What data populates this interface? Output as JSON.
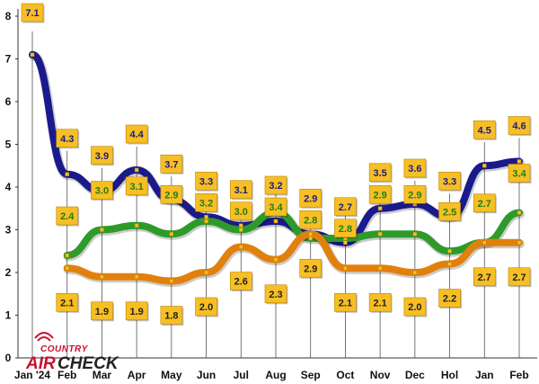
{
  "logo": {
    "top": "COUNTRY",
    "air": "AIR",
    "check": "CHECK"
  },
  "colors": {
    "blue": "#1a1a8c",
    "green": "#2e9a2a",
    "orange": "#e2800e",
    "label_fill": "#f7bf24",
    "label_stroke": "#b8860b",
    "axis": "#333333",
    "grid": "#dddddd"
  },
  "chart_data": {
    "type": "line",
    "title": "",
    "xlabel": "",
    "ylabel": "",
    "ylim": [
      0,
      8
    ],
    "yticks": [
      0,
      1,
      2,
      3,
      4,
      5,
      6,
      7,
      8
    ],
    "categories": [
      "Jan '24",
      "Feb",
      "Mar",
      "Apr",
      "May",
      "Jun",
      "Jul",
      "Aug",
      "Sep",
      "Oct",
      "Nov",
      "Dec",
      "Hol",
      "Jan",
      "Feb"
    ],
    "series": [
      {
        "name": "blue",
        "color": "#1a1a8c",
        "label_color": "#1a1a8c",
        "values": [
          7.1,
          4.3,
          3.9,
          4.4,
          3.7,
          3.3,
          3.1,
          3.2,
          2.9,
          2.7,
          3.5,
          3.6,
          3.3,
          4.5,
          4.6
        ],
        "label_text": [
          "7.1",
          "4.3",
          "3.9",
          "4.4",
          "3.7",
          "3.3",
          "3.1",
          "3.2",
          "2.9",
          "2.7",
          "3.5",
          "3.6",
          "3.3",
          "4.5",
          "4.6"
        ]
      },
      {
        "name": "green",
        "color": "#2e9a2a",
        "label_color": "#1e7d1a",
        "values": [
          null,
          2.4,
          3.0,
          3.1,
          2.9,
          3.2,
          3.0,
          3.4,
          2.8,
          2.8,
          2.9,
          2.9,
          2.5,
          2.7,
          3.4
        ],
        "label_text": [
          null,
          "2.4",
          "3.0",
          "3.1",
          "2.9",
          "3.2",
          "3.0",
          "3.4",
          "2.8",
          "2.8",
          "2.9",
          "2.9",
          "2.5",
          "2.7",
          "3.4"
        ]
      },
      {
        "name": "orange",
        "color": "#e2800e",
        "label_color": "#222222",
        "values": [
          null,
          2.1,
          1.9,
          1.9,
          1.8,
          2.0,
          2.6,
          2.3,
          2.9,
          2.1,
          2.1,
          2.0,
          2.2,
          2.7,
          2.7
        ],
        "label_text": [
          null,
          "2.1",
          "1.9",
          "1.9",
          "1.8",
          "2.0",
          "2.6",
          "2.3",
          "2.9",
          "2.1",
          "2.1",
          "2.0",
          "2.2",
          "2.7",
          "2.7"
        ]
      }
    ]
  }
}
